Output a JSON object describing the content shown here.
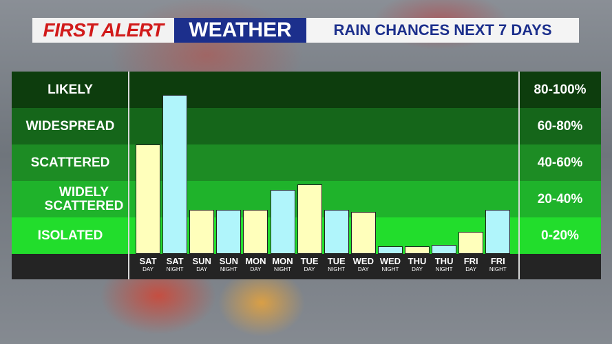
{
  "banner": {
    "first": "FIRST ALERT",
    "weather": "WEATHER",
    "subtitle": "RAIN CHANCES NEXT 7 DAYS"
  },
  "chart_data": {
    "type": "bar",
    "categories": [
      {
        "day": "SAT",
        "period": "DAY"
      },
      {
        "day": "SAT",
        "period": "NIGHT"
      },
      {
        "day": "SUN",
        "period": "DAY"
      },
      {
        "day": "SUN",
        "period": "NIGHT"
      },
      {
        "day": "MON",
        "period": "DAY"
      },
      {
        "day": "MON",
        "period": "NIGHT"
      },
      {
        "day": "TUE",
        "period": "DAY"
      },
      {
        "day": "TUE",
        "period": "NIGHT"
      },
      {
        "day": "WED",
        "period": "DAY"
      },
      {
        "day": "WED",
        "period": "NIGHT"
      },
      {
        "day": "THU",
        "period": "DAY"
      },
      {
        "day": "THU",
        "period": "NIGHT"
      },
      {
        "day": "FRI",
        "period": "DAY"
      },
      {
        "day": "FRI",
        "period": "NIGHT"
      }
    ],
    "values": [
      60,
      87,
      24,
      24,
      24,
      35,
      38,
      24,
      23,
      4,
      4,
      5,
      12,
      24
    ],
    "ylim": [
      0,
      100
    ],
    "bands": [
      {
        "label": "LIKELY",
        "range": "80-100%",
        "color": "#0d3d0d"
      },
      {
        "label": "WIDESPREAD",
        "range": "60-80%",
        "color": "#15661a"
      },
      {
        "label": "SCATTERED",
        "range": "40-60%",
        "color": "#1d8c24"
      },
      {
        "label": "WIDELY SCATTERED",
        "range": "20-40%",
        "color": "#1fb32b"
      },
      {
        "label": "ISOLATED",
        "range": "0-20%",
        "color": "#22dd2c"
      }
    ],
    "colors": {
      "day": "#ffffbb",
      "night": "#b0f5fb",
      "axis_bg": "#242424",
      "divider": "#d9d9d9"
    }
  }
}
